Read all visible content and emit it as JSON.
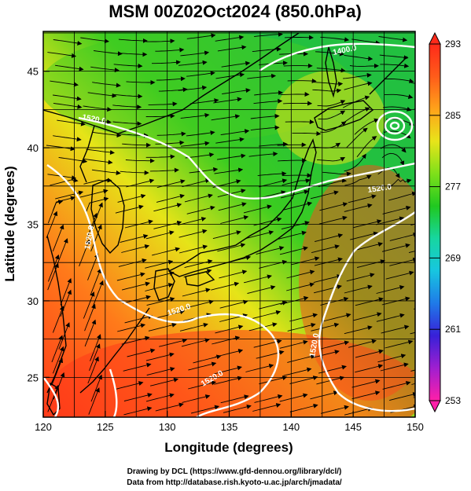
{
  "title": "MSM 00Z02Oct2024 (850.0hPa)",
  "credits": {
    "line1": "Drawing by DCL (https://www.gfd-dennou.org/library/dcl/)",
    "line2": "Data from http://database.rish.kyoto-u.ac.jp/arch/jmadata/"
  },
  "chart_data": {
    "type": "heatmap",
    "xlabel": "Longitude (degrees)",
    "ylabel": "Latitude  (degrees)",
    "xlim": [
      120,
      150
    ],
    "ylim": [
      22.4,
      47.6
    ],
    "xticks": [
      "120",
      "125",
      "130",
      "135",
      "140",
      "145",
      "150"
    ],
    "yticks": [
      "25",
      "30",
      "35",
      "40",
      "45"
    ],
    "colorbar": {
      "min": 253,
      "max": 293,
      "ticks": [
        "293",
        "285",
        "277",
        "269",
        "261",
        "253"
      ],
      "colors": [
        "#ff1fa8",
        "#a01fd0",
        "#3820d8",
        "#1f7ae8",
        "#17c6e0",
        "#17d6a0",
        "#20c820",
        "#7ee01a",
        "#e8e41a",
        "#ffa21a",
        "#ff5c1a",
        "#ff2a1a"
      ]
    },
    "field_colors": {
      "warm_south": "#ff3a1a",
      "orange_mid": "#ff7a1a",
      "yellow_band": "#e6e418",
      "green_north": "#3acc20",
      "cool_nw": "#22c040"
    },
    "contour_labels": [
      "1400.0",
      "1520.0",
      "1520.0",
      "1520.0",
      "1520.0",
      "1520.0",
      "1520.0"
    ]
  }
}
